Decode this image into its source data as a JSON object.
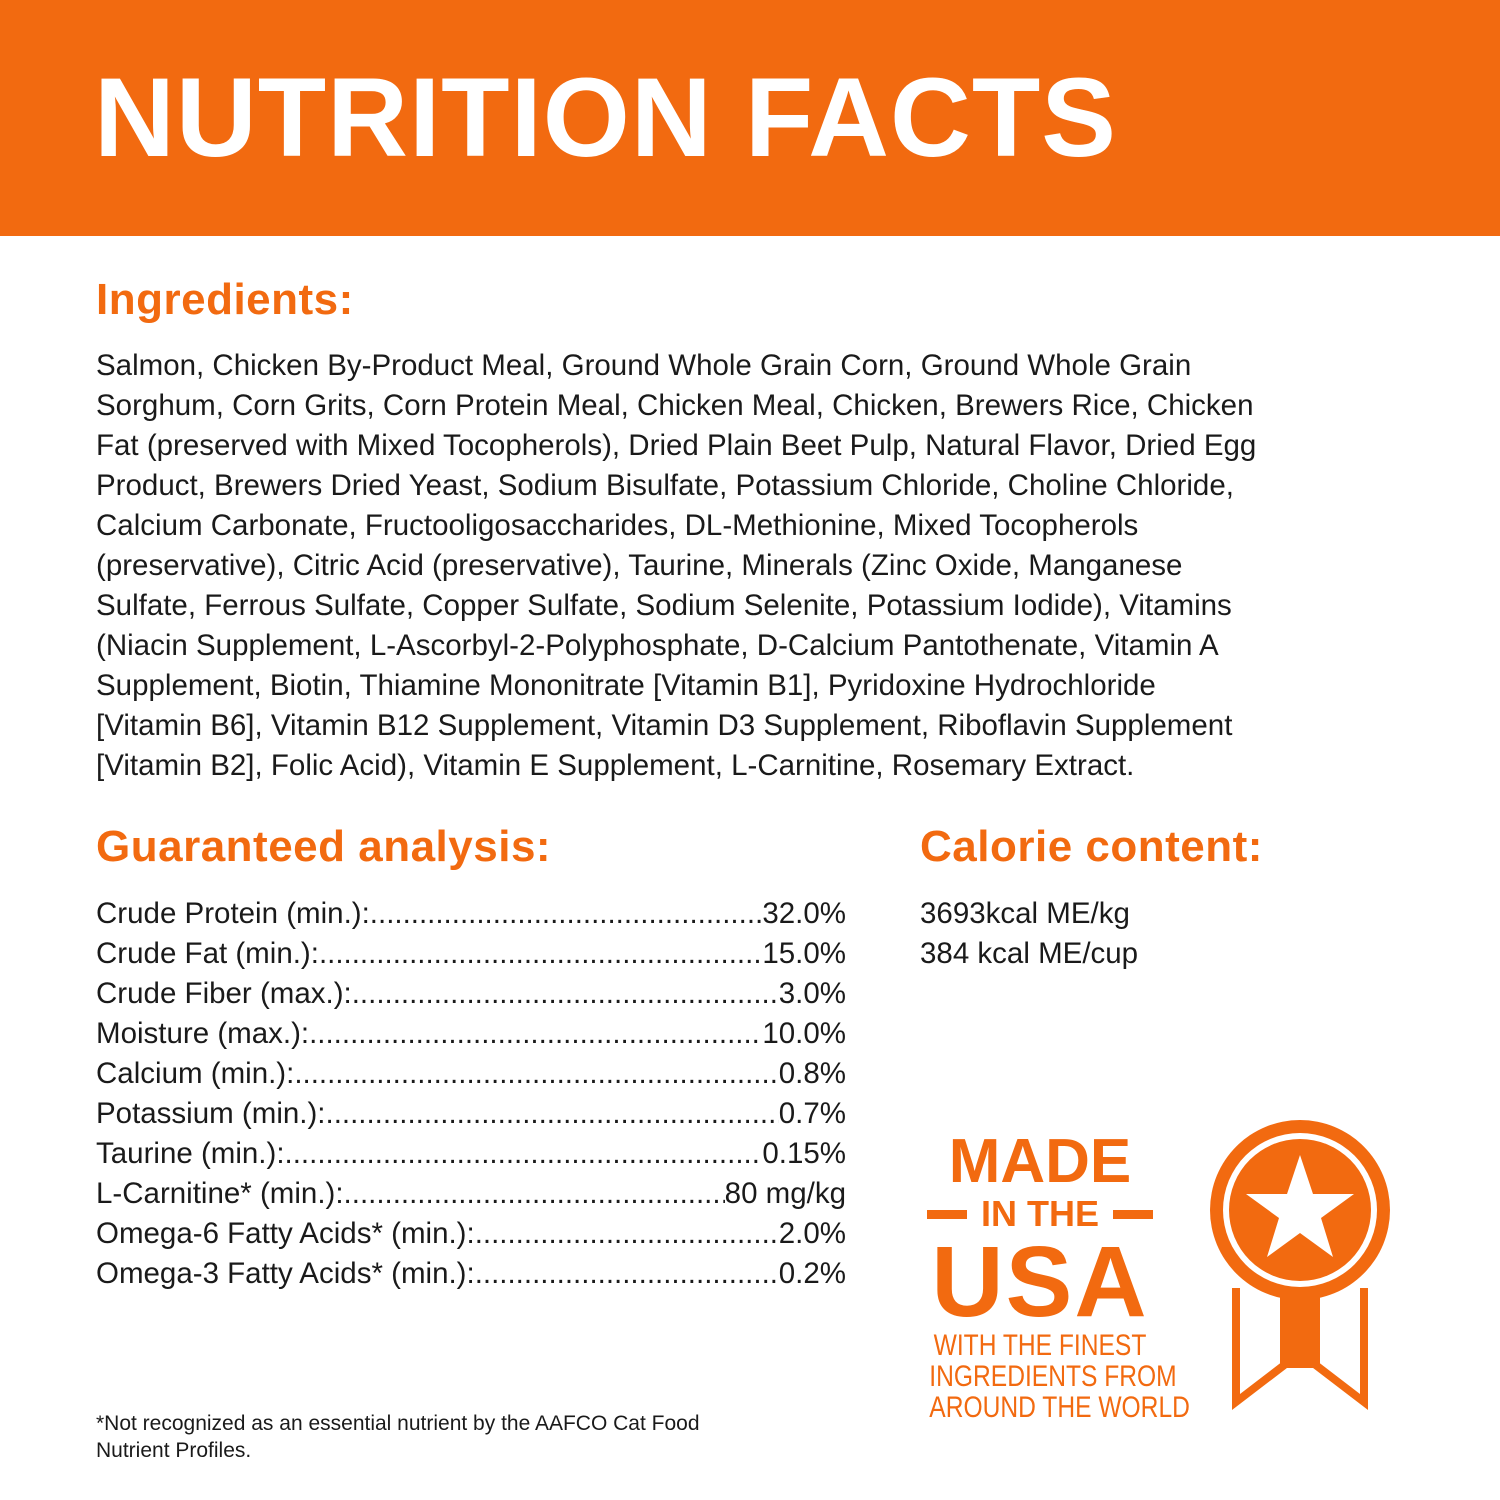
{
  "header": {
    "title": "NUTRITION FACTS"
  },
  "ingredients": {
    "heading": "Ingredients:",
    "lines": [
      "Salmon, Chicken By-Product Meal, Ground Whole Grain Corn, Ground Whole Grain",
      "Sorghum, Corn Grits, Corn Protein Meal, Chicken Meal, Chicken, Brewers Rice, Chicken",
      "Fat (preserved with Mixed Tocopherols), Dried Plain Beet Pulp, Natural Flavor, Dried Egg",
      "Product, Brewers Dried Yeast, Sodium Bisulfate, Potassium Chloride, Choline Chloride,",
      "Calcium Carbonate, Fructooligosaccharides, DL-Methionine, Mixed Tocopherols",
      "(preservative), Citric Acid (preservative), Taurine, Minerals (Zinc Oxide, Manganese",
      "Sulfate, Ferrous Sulfate, Copper Sulfate, Sodium Selenite, Potassium Iodide), Vitamins",
      "(Niacin Supplement, L-Ascorbyl-2-Polyphosphate, D-Calcium Pantothenate, Vitamin A",
      "Supplement, Biotin, Thiamine Mononitrate [Vitamin B1], Pyridoxine Hydrochloride",
      "[Vitamin B6], Vitamin B12 Supplement, Vitamin D3 Supplement, Riboflavin Supplement",
      "[Vitamin B2], Folic Acid), Vitamin E Supplement, L-Carnitine, Rosemary Extract."
    ]
  },
  "analysis": {
    "heading": "Guaranteed analysis:",
    "rows": [
      {
        "label": "Crude Protein (min.):",
        "value": "32.0%"
      },
      {
        "label": "Crude Fat (min.):",
        "value": "15.0%"
      },
      {
        "label": "Crude Fiber (max.):",
        "value": "3.0%"
      },
      {
        "label": "Moisture (max.):",
        "value": "10.0%"
      },
      {
        "label": "Calcium (min.):",
        "value": "0.8%"
      },
      {
        "label": "Potassium (min.):",
        "value": "0.7%"
      },
      {
        "label": "Taurine (min.):",
        "value": "0.15%"
      },
      {
        "label": "L-Carnitine* (min.):",
        "value": "80 mg/kg"
      },
      {
        "label": "Omega-6 Fatty Acids* (min.):",
        "value": "2.0%"
      },
      {
        "label": "Omega-3 Fatty Acids* (min.):",
        "value": "0.2%"
      }
    ]
  },
  "calorie": {
    "heading": "Calorie content:",
    "lines": [
      "3693kcal ME/kg",
      "384 kcal ME/cup"
    ]
  },
  "footnote": {
    "lines": [
      "*Not recognized as an essential nutrient by the AAFCO Cat Food",
      "Nutrient Profiles."
    ]
  },
  "badge": {
    "made": "MADE",
    "in_the": "IN THE",
    "usa": "USA",
    "tagline": [
      "WITH THE FINEST",
      "INGREDIENTS FROM",
      "AROUND THE WORLD"
    ],
    "icon": "award-ribbon-star-icon"
  },
  "colors": {
    "accent": "#f26a10",
    "text": "#1a1a1a",
    "background": "#ffffff"
  }
}
